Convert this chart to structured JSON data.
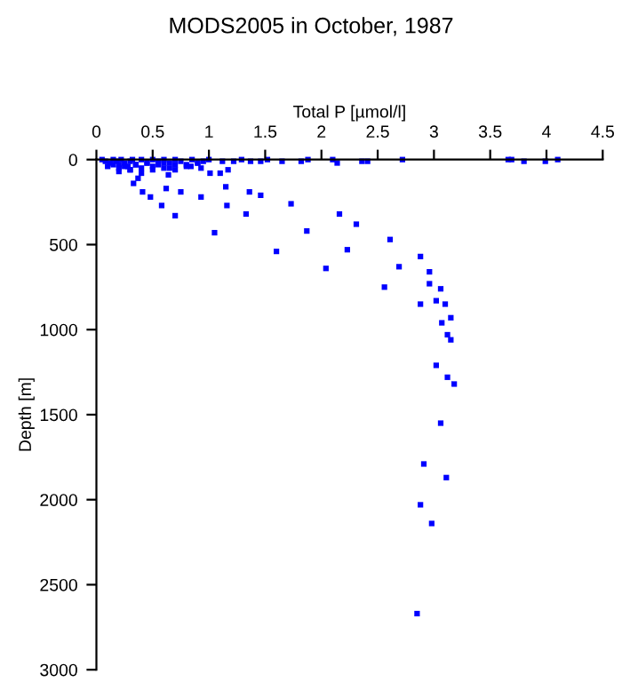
{
  "chart_data": {
    "type": "scatter",
    "title": "MODS2005 in October, 1987",
    "xlabel": "Total P [µmol/l]",
    "ylabel": "Depth [m]",
    "xlim": [
      0,
      4.5
    ],
    "xticks": [
      0,
      0.5,
      1,
      1.5,
      2,
      2.5,
      3,
      3.5,
      4,
      4.5
    ],
    "ylim": [
      3000,
      0
    ],
    "yticks": [
      0,
      500,
      1000,
      1500,
      2000,
      2500,
      3000
    ],
    "grid": false,
    "marker": "square",
    "legend": false,
    "series": [
      {
        "color": "#0000ff",
        "x": [
          0.7,
          1.05,
          1.33,
          1.6,
          1.87,
          2.04,
          2.16,
          2.23,
          2.31,
          2.56,
          2.61,
          2.69,
          2.88,
          2.88,
          2.96,
          2.96,
          3.02,
          3.06,
          3.1,
          3.15,
          3.07,
          3.12,
          3.15,
          3.02,
          3.12,
          3.18,
          3.06,
          2.91,
          3.11,
          2.88,
          2.98,
          2.85,
          2.72,
          3.66,
          3.69,
          3.8,
          3.99,
          4.1,
          2.14,
          2.36,
          2.41,
          2.1,
          1.88,
          1.82,
          1.65,
          1.52,
          1.46,
          1.37,
          1.29,
          1.22,
          1.12,
          1.15,
          0.58,
          0.48,
          0.41,
          0.33,
          0.37,
          0.62,
          0.75,
          0.64,
          0.93,
          1.16,
          1.36,
          1.46,
          1.73,
          1.01,
          1.1,
          1.17,
          0.84,
          0.93,
          0.05,
          0.08,
          0.12,
          0.15,
          0.18,
          0.2,
          0.22,
          0.25,
          0.28,
          0.3,
          0.32,
          0.35,
          0.4,
          0.45,
          0.5,
          0.55,
          0.6,
          0.65,
          0.7,
          0.75,
          0.8,
          0.85,
          0.9,
          0.95,
          1.0,
          0.1,
          0.15,
          0.2,
          0.25,
          0.3,
          0.35,
          0.4,
          0.45,
          0.5,
          0.55,
          0.6,
          0.65,
          0.7,
          0.8,
          0.9,
          0.2,
          0.3,
          0.4,
          0.5,
          0.6,
          0.7
        ],
        "values": [
          330,
          430,
          320,
          540,
          420,
          640,
          320,
          530,
          380,
          750,
          470,
          630,
          570,
          850,
          660,
          730,
          830,
          760,
          850,
          930,
          960,
          1030,
          1060,
          1210,
          1280,
          1320,
          1550,
          1790,
          1870,
          2030,
          2140,
          2670,
          0,
          0,
          0,
          10,
          10,
          0,
          20,
          10,
          10,
          0,
          0,
          10,
          10,
          0,
          10,
          10,
          0,
          10,
          10,
          160,
          270,
          220,
          190,
          140,
          110,
          170,
          190,
          90,
          220,
          270,
          190,
          210,
          260,
          80,
          80,
          60,
          40,
          50,
          0,
          10,
          20,
          0,
          10,
          30,
          0,
          20,
          40,
          10,
          0,
          30,
          0,
          20,
          0,
          10,
          0,
          20,
          0,
          10,
          30,
          0,
          20,
          10,
          0,
          40,
          30,
          50,
          40,
          60,
          30,
          50,
          20,
          40,
          30,
          20,
          50,
          30,
          40,
          20,
          70,
          60,
          80,
          60,
          50,
          60
        ]
      }
    ]
  }
}
